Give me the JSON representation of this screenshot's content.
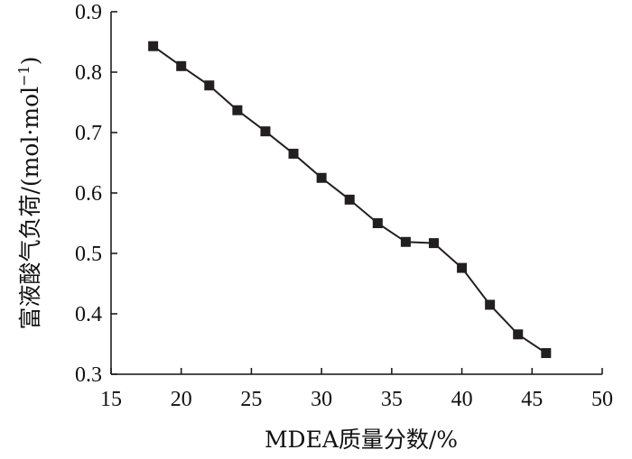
{
  "chart_data": {
    "type": "line",
    "title": "",
    "xlabel": "MDEA质量分数/%",
    "ylabel_main": "富液酸气负荷/(mol·mol",
    "ylabel_sup": "−1",
    "ylabel_close": ")",
    "xlim": [
      15,
      50
    ],
    "ylim": [
      0.3,
      0.9
    ],
    "xticks": [
      "15",
      "20",
      "25",
      "30",
      "35",
      "40",
      "45",
      "50"
    ],
    "yticks": [
      "0.3",
      "0.4",
      "0.5",
      "0.6",
      "0.7",
      "0.8",
      "0.9"
    ],
    "grid": false,
    "legend": "none",
    "marker": "square",
    "color": "#231f20",
    "series": [
      {
        "x": [
          18,
          20,
          22,
          24,
          26,
          28,
          30,
          32,
          34,
          36,
          38,
          40,
          42,
          44,
          46
        ],
        "values": [
          0.843,
          0.81,
          0.778,
          0.737,
          0.702,
          0.665,
          0.625,
          0.589,
          0.55,
          0.519,
          0.517,
          0.476,
          0.415,
          0.366,
          0.335
        ]
      }
    ]
  }
}
